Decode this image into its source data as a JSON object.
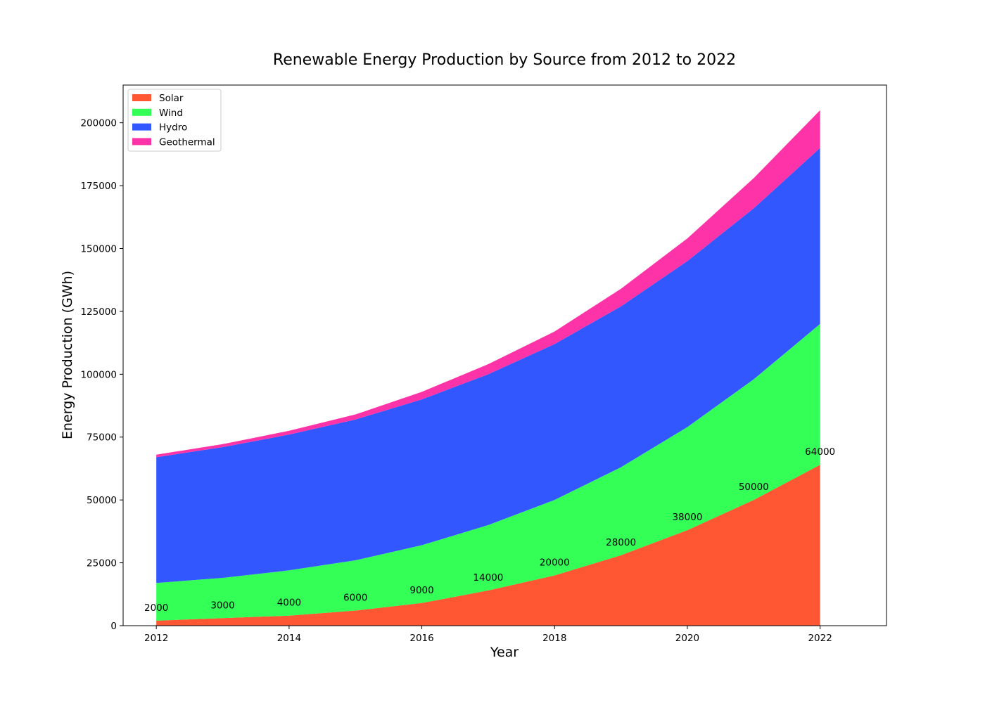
{
  "chart_data": {
    "type": "area",
    "stacked": true,
    "title": "Renewable Energy Production by Source from 2012 to 2022",
    "xlabel": "Year",
    "ylabel": "Energy Production (GWh)",
    "x": [
      2012,
      2013,
      2014,
      2015,
      2016,
      2017,
      2018,
      2019,
      2020,
      2021,
      2022
    ],
    "x_ticks": [
      "2012",
      "2014",
      "2016",
      "2018",
      "2020",
      "2022"
    ],
    "y_ticks": [
      "0",
      "25000",
      "50000",
      "75000",
      "100000",
      "125000",
      "150000",
      "175000",
      "200000"
    ],
    "xlim": [
      2011.5,
      2023.0
    ],
    "ylim": [
      0,
      215000
    ],
    "grid": false,
    "legend_position": "upper-left",
    "series": [
      {
        "name": "Solar",
        "color": "#ff5733",
        "values": [
          2000,
          3000,
          4000,
          6000,
          9000,
          14000,
          20000,
          28000,
          38000,
          50000,
          64000
        ]
      },
      {
        "name": "Wind",
        "color": "#33ff57",
        "values": [
          15000,
          16000,
          18000,
          20000,
          23000,
          26000,
          30000,
          35000,
          41000,
          48000,
          56000
        ]
      },
      {
        "name": "Hydro",
        "color": "#3357ff",
        "values": [
          50000,
          52000,
          54000,
          56000,
          58000,
          60000,
          62000,
          64000,
          66000,
          68000,
          70000
        ]
      },
      {
        "name": "Geothermal",
        "color": "#ff33a8",
        "values": [
          1000,
          1200,
          1500,
          2000,
          3000,
          4000,
          5000,
          7000,
          9000,
          12000,
          15000
        ]
      }
    ],
    "data_labels": [
      "2000",
      "3000",
      "4000",
      "6000",
      "9000",
      "14000",
      "20000",
      "28000",
      "38000",
      "50000",
      "64000"
    ]
  }
}
